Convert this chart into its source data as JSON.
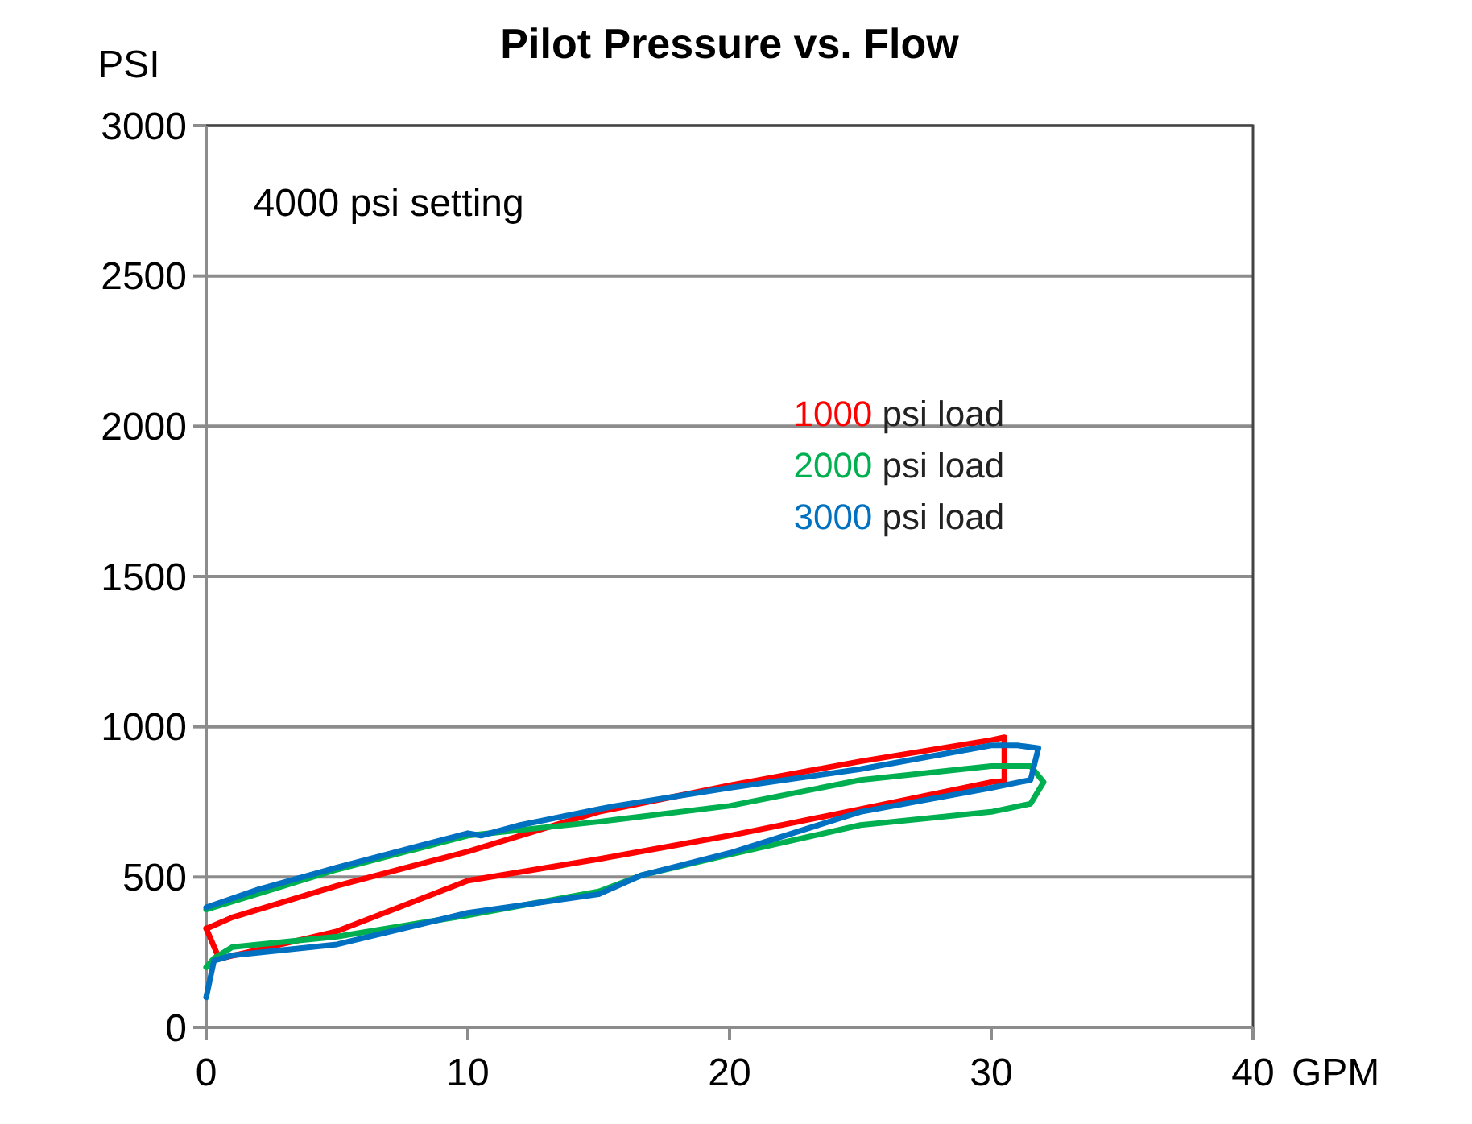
{
  "chart_data": {
    "type": "line",
    "title": "Pilot Pressure vs. Flow",
    "xlabel": "GPM",
    "ylabel": "PSI",
    "annotations": [
      "4000 psi setting"
    ],
    "xlim": [
      0,
      40
    ],
    "xticks": [
      0,
      10,
      20,
      30,
      40
    ],
    "ylim": [
      0,
      3000
    ],
    "yticks": [
      0,
      500,
      1000,
      1500,
      2000,
      2500,
      3000
    ],
    "grid": "y",
    "legend": "right",
    "marker": "none",
    "line_style": "solid",
    "series": [
      {
        "name": "1000 psi load",
        "color": "#ff0000",
        "x": [
          0,
          0.5,
          5,
          10,
          15,
          20,
          25,
          30,
          30.5,
          30.5,
          30,
          25,
          20,
          15,
          10,
          5,
          1,
          0
        ],
        "values": [
          330,
          228,
          320,
          488,
          560,
          638,
          726,
          816,
          820,
          965,
          956,
          885,
          805,
          717,
          585,
          471,
          366,
          328
        ]
      },
      {
        "name": "2000 psi load",
        "color": "#00b050",
        "x": [
          0,
          0.3,
          1,
          5,
          10,
          15,
          16.6,
          20,
          25,
          30,
          31.5,
          32,
          31.5,
          30,
          25,
          20,
          15,
          10,
          5,
          2,
          0
        ],
        "values": [
          200,
          230,
          267,
          302,
          373,
          452,
          505,
          575,
          673,
          717,
          744,
          816,
          869,
          869,
          823,
          737,
          684,
          638,
          525,
          445,
          392
        ]
      },
      {
        "name": "3000 psi load",
        "color": "#0070c0",
        "x": [
          0,
          0.3,
          1,
          5,
          10,
          15,
          16.6,
          20,
          25,
          30,
          31.5,
          31.8,
          31,
          30,
          25,
          20,
          15.66,
          15,
          12,
          10.5,
          10,
          5,
          2,
          0
        ],
        "values": [
          100,
          222,
          240,
          276,
          381,
          443,
          505,
          580,
          717,
          797,
          823,
          929,
          938,
          938,
          859,
          797,
          737,
          726,
          673,
          638,
          646,
          532,
          459,
          399
        ]
      }
    ]
  }
}
